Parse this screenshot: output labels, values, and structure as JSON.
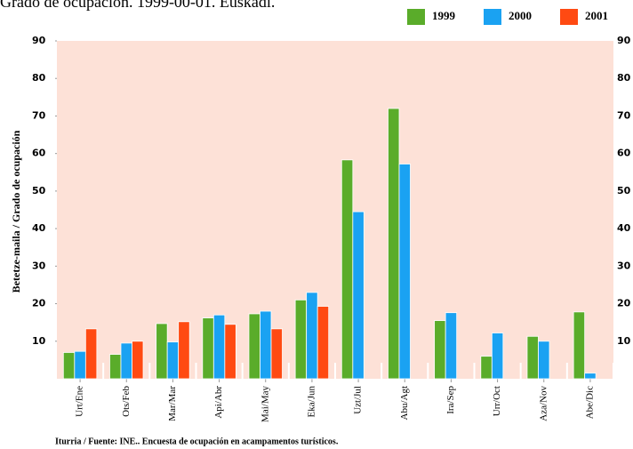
{
  "chart_data": {
    "type": "bar",
    "title": "Grado de ocupación. 1999-00-01. Euskadi.",
    "y_label": "Betetze-maila / Grado de ocupación",
    "source": "Iturria / Fuente: INE.. Encuesta de ocupación en acampamentos turísticos.",
    "categories": [
      "Urt/Ene",
      "Ots/Feb",
      "Mar/Mar",
      "Api/Abr",
      "Mai/May",
      "Eka/Jun",
      "Uzt/Jul",
      "Abu/Agt",
      "Ira/Sep",
      "Urr/Oct",
      "Aza/Nov",
      "Abe/Dic"
    ],
    "series": [
      {
        "name": "1999",
        "color": "#5aac2a",
        "values": [
          7,
          6.5,
          14.7,
          16.2,
          17.3,
          21,
          58.3,
          72,
          15.5,
          6,
          11.3,
          17.8
        ]
      },
      {
        "name": "2000",
        "color": "#1aa2f2",
        "values": [
          7.3,
          9.5,
          9.8,
          17,
          18,
          23,
          44.5,
          57.2,
          17.6,
          12.2,
          10,
          1.5
        ]
      },
      {
        "name": "2001",
        "color": "#ff4a12",
        "values": [
          13.3,
          10,
          15.2,
          14.5,
          13.3,
          19.3,
          null,
          null,
          null,
          null,
          null,
          null
        ]
      }
    ],
    "ylim": [
      0,
      90
    ],
    "yticks": [
      10,
      20,
      30,
      40,
      50,
      60,
      70,
      80,
      90
    ],
    "plot_background": "#fde1d7"
  }
}
